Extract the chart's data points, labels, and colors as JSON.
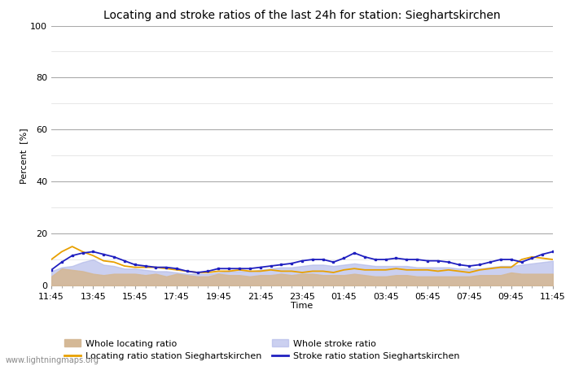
{
  "title": "Locating and stroke ratios of the last 24h for station: Sieghartskirchen",
  "xlabel": "Time",
  "ylabel": "Percent  [%]",
  "ylim": [
    0,
    100
  ],
  "yticks_major": [
    0,
    20,
    40,
    60,
    80,
    100
  ],
  "yticks_minor": [
    10,
    30,
    50,
    70,
    90
  ],
  "watermark": "www.lightningmaps.org",
  "x_labels": [
    "11:45",
    "13:45",
    "15:45",
    "17:45",
    "19:45",
    "21:45",
    "23:45",
    "01:45",
    "03:45",
    "05:45",
    "07:45",
    "09:45",
    "11:45"
  ],
  "whole_locating": [
    3.5,
    6.5,
    6.0,
    5.5,
    4.5,
    4.0,
    4.5,
    4.5,
    4.5,
    4.0,
    4.5,
    3.5,
    4.5,
    4.0,
    3.5,
    3.5,
    4.5,
    4.0,
    4.0,
    3.5,
    4.0,
    4.0,
    4.5,
    4.0,
    4.5,
    4.5,
    4.0,
    4.0,
    4.0,
    4.5,
    4.0,
    3.5,
    3.5,
    4.0,
    4.0,
    3.5,
    3.5,
    3.5,
    3.5,
    3.5,
    3.5,
    4.0,
    4.0,
    4.0,
    5.0,
    4.5,
    4.5,
    4.5,
    4.5
  ],
  "locating_station": [
    10.0,
    13.0,
    15.0,
    13.0,
    11.5,
    9.5,
    9.0,
    7.5,
    7.0,
    7.0,
    7.0,
    6.5,
    6.0,
    5.5,
    5.0,
    5.0,
    5.5,
    5.5,
    6.0,
    5.5,
    5.5,
    6.0,
    5.5,
    5.5,
    5.0,
    5.5,
    5.5,
    5.0,
    6.0,
    6.5,
    6.0,
    6.0,
    6.0,
    6.5,
    6.0,
    6.0,
    6.0,
    5.5,
    6.0,
    5.5,
    5.0,
    6.0,
    6.5,
    7.0,
    7.0,
    10.0,
    11.0,
    10.5,
    10.0
  ],
  "whole_stroke": [
    5.5,
    7.0,
    7.5,
    9.0,
    10.0,
    8.0,
    7.5,
    6.5,
    6.5,
    6.0,
    5.5,
    5.5,
    5.0,
    4.5,
    4.5,
    4.5,
    5.0,
    5.5,
    5.5,
    5.5,
    6.0,
    6.5,
    7.0,
    7.0,
    7.5,
    8.0,
    8.0,
    7.5,
    8.0,
    8.5,
    8.0,
    7.5,
    7.5,
    7.5,
    7.5,
    7.0,
    7.0,
    7.0,
    7.0,
    6.5,
    6.5,
    6.5,
    7.0,
    7.5,
    7.5,
    8.0,
    8.5,
    9.0,
    9.5
  ],
  "stroke_station": [
    6.0,
    9.0,
    11.5,
    12.5,
    13.0,
    12.0,
    11.0,
    9.5,
    8.0,
    7.5,
    7.0,
    7.0,
    6.5,
    5.5,
    5.0,
    5.5,
    6.5,
    6.5,
    6.5,
    6.5,
    7.0,
    7.5,
    8.0,
    8.5,
    9.5,
    10.0,
    10.0,
    9.0,
    10.5,
    12.5,
    11.0,
    10.0,
    10.0,
    10.5,
    10.0,
    10.0,
    9.5,
    9.5,
    9.0,
    8.0,
    7.5,
    8.0,
    9.0,
    10.0,
    10.0,
    9.0,
    10.5,
    12.0,
    13.0
  ],
  "color_whole_locating": "#d4b896",
  "color_locating_station": "#e8a000",
  "color_whole_stroke": "#b0b8e8",
  "color_stroke_station": "#2020c0",
  "background_color": "#ffffff",
  "plot_bg_color": "#ffffff",
  "grid_color": "#aaaaaa",
  "grid_minor_color": "#dddddd",
  "title_fontsize": 10,
  "axis_fontsize": 8,
  "tick_fontsize": 8,
  "legend_fontsize": 8
}
